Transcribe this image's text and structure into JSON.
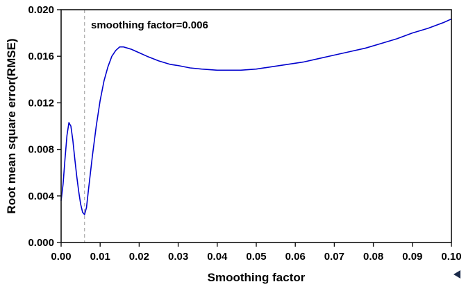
{
  "chart_data": {
    "type": "line",
    "title": "",
    "xlabel": "Smoothing factor",
    "ylabel": "Root mean square error(RMSE)",
    "xlim": [
      0,
      0.1
    ],
    "ylim": [
      0,
      0.02
    ],
    "grid": false,
    "legend": "none",
    "xticks": [
      0.0,
      0.01,
      0.02,
      0.03,
      0.04,
      0.05,
      0.06,
      0.07,
      0.08,
      0.09,
      0.1
    ],
    "xtick_labels": [
      "0.00",
      "0.01",
      "0.02",
      "0.03",
      "0.04",
      "0.05",
      "0.06",
      "0.07",
      "0.08",
      "0.09",
      "0.10"
    ],
    "yticks": [
      0.0,
      0.004,
      0.008,
      0.012,
      0.016,
      0.02
    ],
    "ytick_labels": [
      "0.000",
      "0.004",
      "0.008",
      "0.012",
      "0.016",
      "0.020"
    ],
    "annotation": {
      "text": "smoothing factor=0.006",
      "x": 0.0075,
      "y": 0.0185
    },
    "vline": {
      "x": 0.006,
      "style": "dashed",
      "color": "#a9a9a9"
    },
    "series": [
      {
        "name": "RMSE",
        "color": "#0000cd",
        "points": [
          [
            0.0,
            0.0036
          ],
          [
            0.0005,
            0.005
          ],
          [
            0.001,
            0.0072
          ],
          [
            0.0015,
            0.0092
          ],
          [
            0.002,
            0.0103
          ],
          [
            0.0025,
            0.01
          ],
          [
            0.003,
            0.0088
          ],
          [
            0.0035,
            0.0072
          ],
          [
            0.004,
            0.0057
          ],
          [
            0.0045,
            0.0044
          ],
          [
            0.005,
            0.0033
          ],
          [
            0.0055,
            0.0026
          ],
          [
            0.006,
            0.0024
          ],
          [
            0.0065,
            0.003
          ],
          [
            0.007,
            0.0045
          ],
          [
            0.008,
            0.0074
          ],
          [
            0.009,
            0.01
          ],
          [
            0.01,
            0.0122
          ],
          [
            0.011,
            0.0139
          ],
          [
            0.012,
            0.0151
          ],
          [
            0.013,
            0.016
          ],
          [
            0.014,
            0.0165
          ],
          [
            0.015,
            0.0168
          ],
          [
            0.016,
            0.0168
          ],
          [
            0.017,
            0.0167
          ],
          [
            0.018,
            0.0166
          ],
          [
            0.02,
            0.0163
          ],
          [
            0.022,
            0.016
          ],
          [
            0.025,
            0.0156
          ],
          [
            0.028,
            0.0153
          ],
          [
            0.03,
            0.0152
          ],
          [
            0.033,
            0.015
          ],
          [
            0.036,
            0.0149
          ],
          [
            0.04,
            0.0148
          ],
          [
            0.043,
            0.0148
          ],
          [
            0.046,
            0.0148
          ],
          [
            0.05,
            0.0149
          ],
          [
            0.054,
            0.0151
          ],
          [
            0.058,
            0.0153
          ],
          [
            0.062,
            0.0155
          ],
          [
            0.066,
            0.0158
          ],
          [
            0.07,
            0.0161
          ],
          [
            0.074,
            0.0164
          ],
          [
            0.078,
            0.0167
          ],
          [
            0.082,
            0.0171
          ],
          [
            0.086,
            0.0175
          ],
          [
            0.09,
            0.018
          ],
          [
            0.094,
            0.0184
          ],
          [
            0.098,
            0.0189
          ],
          [
            0.1,
            0.0192
          ]
        ]
      }
    ],
    "colors": {
      "line": "#0000cd",
      "axis": "#111111",
      "vline": "#a9a9a9",
      "text": "#000000",
      "background": "#ffffff"
    }
  }
}
